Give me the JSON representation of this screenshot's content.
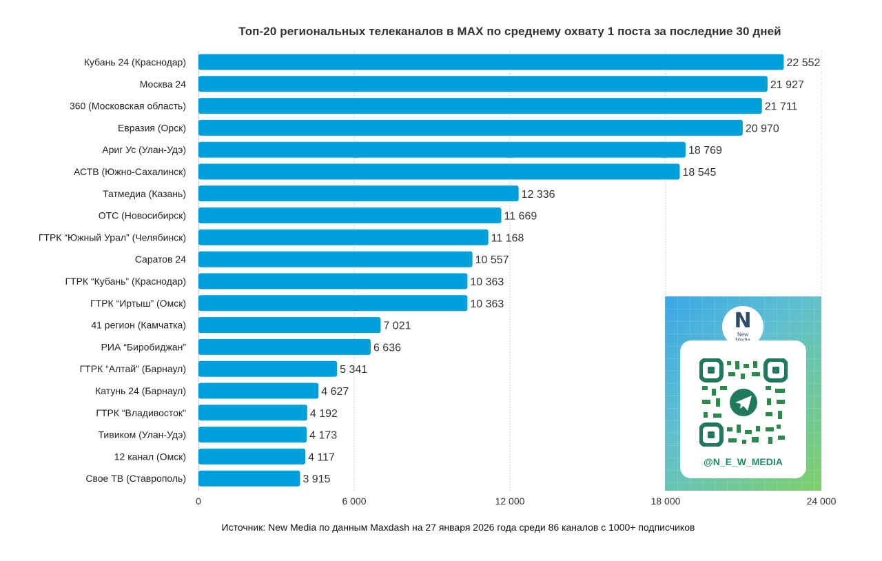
{
  "chart_data": {
    "type": "bar",
    "orientation": "horizontal",
    "title": "Топ-20 региональных телеканалов в MAX по среднему охвату 1 поста за последние 30 дней",
    "categories": [
      "Кубань 24 (Краснодар)",
      "Москва 24",
      "360 (Московская область)",
      "Евразия (Орск)",
      "Ариг Ус (Улан-Удэ)",
      "АСТВ (Южно-Сахалинск)",
      "Татмедиа (Казань)",
      "ОТС (Новосибирск)",
      "ГТРК “Южный Урал” (Челябинск)",
      "Саратов 24",
      "ГТРК “Кубань” (Краснодар)",
      "ГТРК “Иртыш” (Омск)",
      "41 регион (Камчатка)",
      "РИА “Биробиджан”",
      "ГТРК “Алтай” (Барнаул)",
      "Катунь 24 (Барнаул)",
      "ГТРК “Владивосток\"",
      "Тивиком (Улан-Удэ)",
      "12 канал (Омск)",
      "Свое ТВ (Ставрополь)"
    ],
    "values": [
      22552,
      21927,
      21711,
      20970,
      18769,
      18545,
      12336,
      11669,
      11168,
      10557,
      10363,
      10363,
      7021,
      6636,
      5341,
      4627,
      4192,
      4173,
      4117,
      3915
    ],
    "value_labels": [
      "22 552",
      "21 927",
      "21 711",
      "20 970",
      "18 769",
      "18 545",
      "12 336",
      "11 669",
      "11 168",
      "10 557",
      "10 363",
      "10 363",
      "7 021",
      "6 636",
      "5 341",
      "4 627",
      "4 192",
      "4 173",
      "4 117",
      "3 915"
    ],
    "xlim": [
      0,
      24000
    ],
    "xticks": [
      0,
      6000,
      12000,
      18000,
      24000
    ],
    "xtick_labels": [
      "0",
      "6 000",
      "12 000",
      "18 000",
      "24 000"
    ],
    "grid": "vertical dotted",
    "bar_color": "#00a0dc",
    "source": "Источник: New Media по данным Maxdash на 27 января 2026 года среди 86 каналов с 1000+ подписчиков"
  },
  "promo": {
    "logo_letter": "N",
    "logo_text_1": "New",
    "logo_text_2": "Media",
    "handle": "@N_E_W_MEDIA",
    "icon": "qr-code-telegram-icon"
  }
}
